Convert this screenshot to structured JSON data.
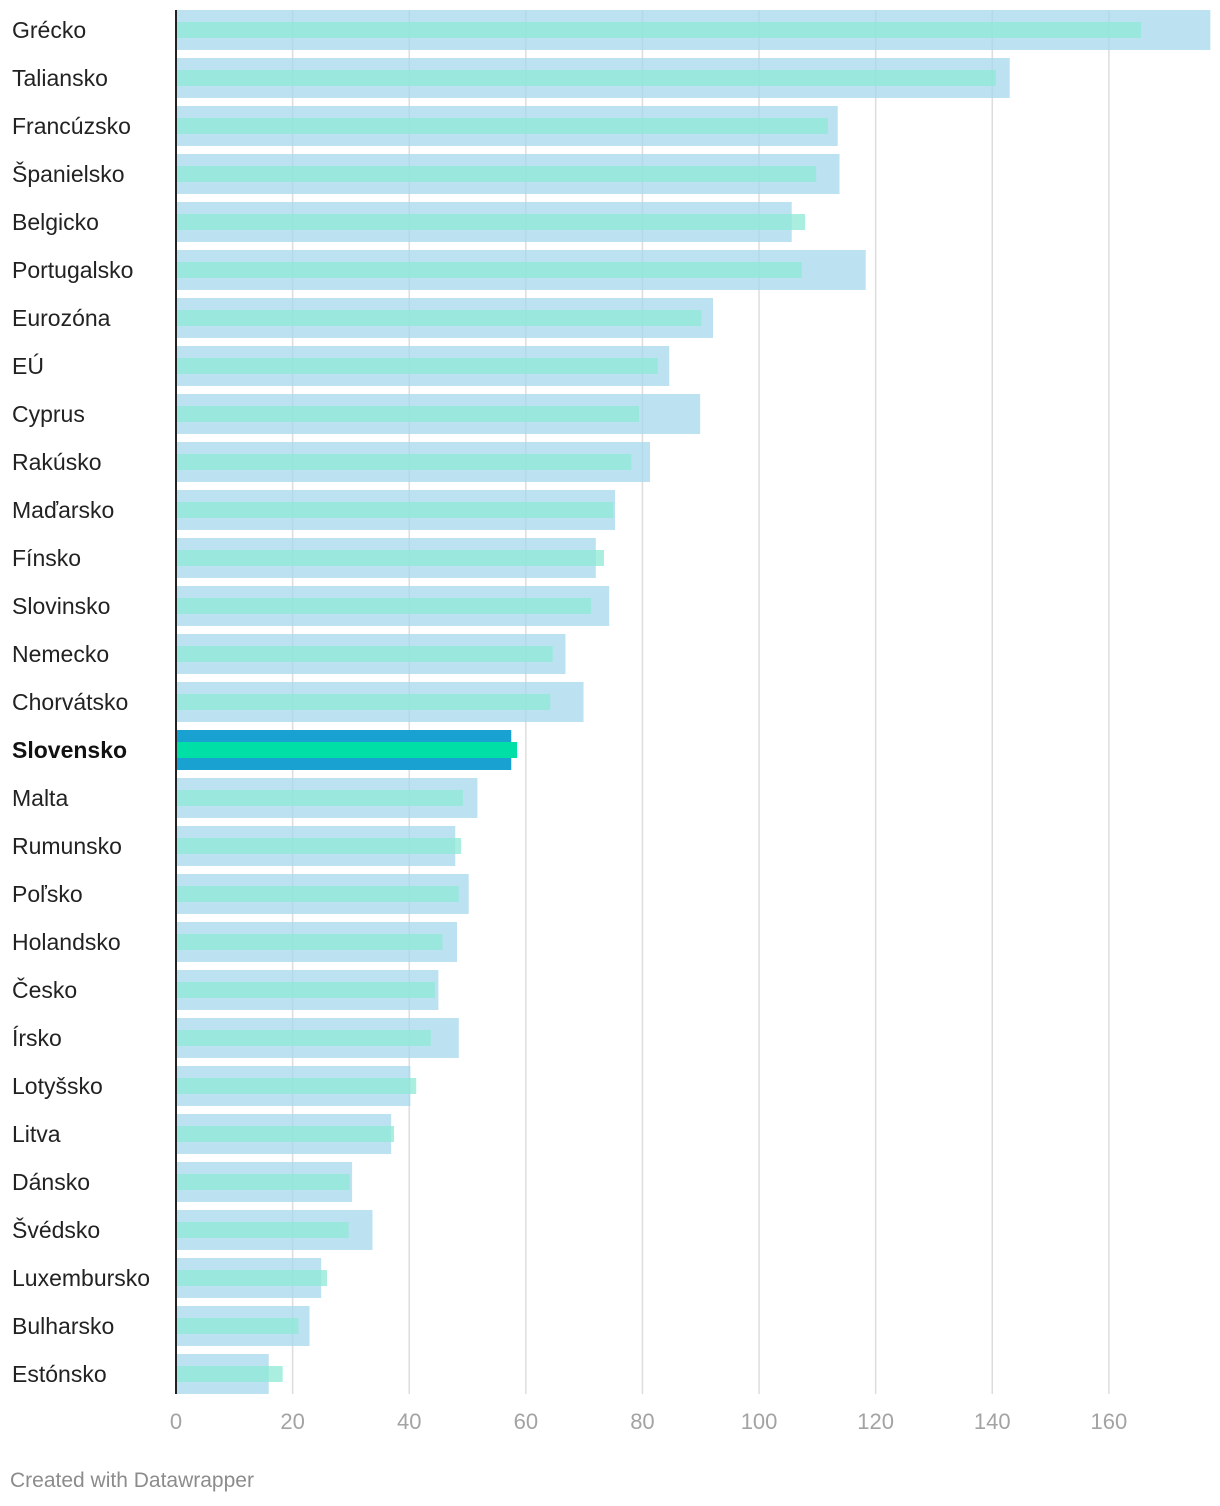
{
  "chart_data": {
    "type": "bar",
    "orientation": "horizontal",
    "x_ticks": [
      0,
      20,
      40,
      60,
      80,
      100,
      120,
      140,
      160
    ],
    "xlim": [
      0,
      177
    ],
    "grid": true,
    "highlight": "Slovensko",
    "categories": [
      "Grécko",
      "Taliansko",
      "Francúzsko",
      "Španielsko",
      "Belgicko",
      "Portugalsko",
      "Eurozóna",
      "EÚ",
      "Cyprus",
      "Rakúsko",
      "Maďarsko",
      "Fínsko",
      "Slovinsko",
      "Nemecko",
      "Chorvátsko",
      "Slovensko",
      "Malta",
      "Rumunsko",
      "Poľsko",
      "Holandsko",
      "Česko",
      "Írsko",
      "Lotyšsko",
      "Litva",
      "Dánsko",
      "Švédsko",
      "Luxembursko",
      "Bulharsko",
      "Estónsko"
    ],
    "series": [
      {
        "name": "wide bar",
        "values": [
          177.4,
          143.0,
          113.5,
          113.8,
          105.6,
          118.3,
          92.1,
          84.6,
          89.9,
          81.3,
          75.3,
          72.0,
          74.3,
          66.8,
          69.9,
          57.5,
          51.7,
          47.9,
          50.2,
          48.2,
          45.0,
          48.5,
          40.2,
          36.9,
          30.2,
          33.7,
          24.9,
          22.9,
          15.9
        ]
      },
      {
        "name": "thin bar",
        "values": [
          165.5,
          140.6,
          111.8,
          109.8,
          107.9,
          107.3,
          90.1,
          82.6,
          79.4,
          78.1,
          75.0,
          73.4,
          71.2,
          64.6,
          64.2,
          58.5,
          49.2,
          48.9,
          48.5,
          45.7,
          44.4,
          43.7,
          41.2,
          37.4,
          29.8,
          29.6,
          25.9,
          21.0,
          18.3
        ]
      }
    ],
    "colors": {
      "wide": "#a5d8ec",
      "thin": "#8de8d6",
      "wide_highlight": "#19a2d1",
      "thin_highlight": "#00e0a6",
      "grid": "#dddddd",
      "axis": "#222222"
    }
  },
  "credit": "Created with Datawrapper"
}
